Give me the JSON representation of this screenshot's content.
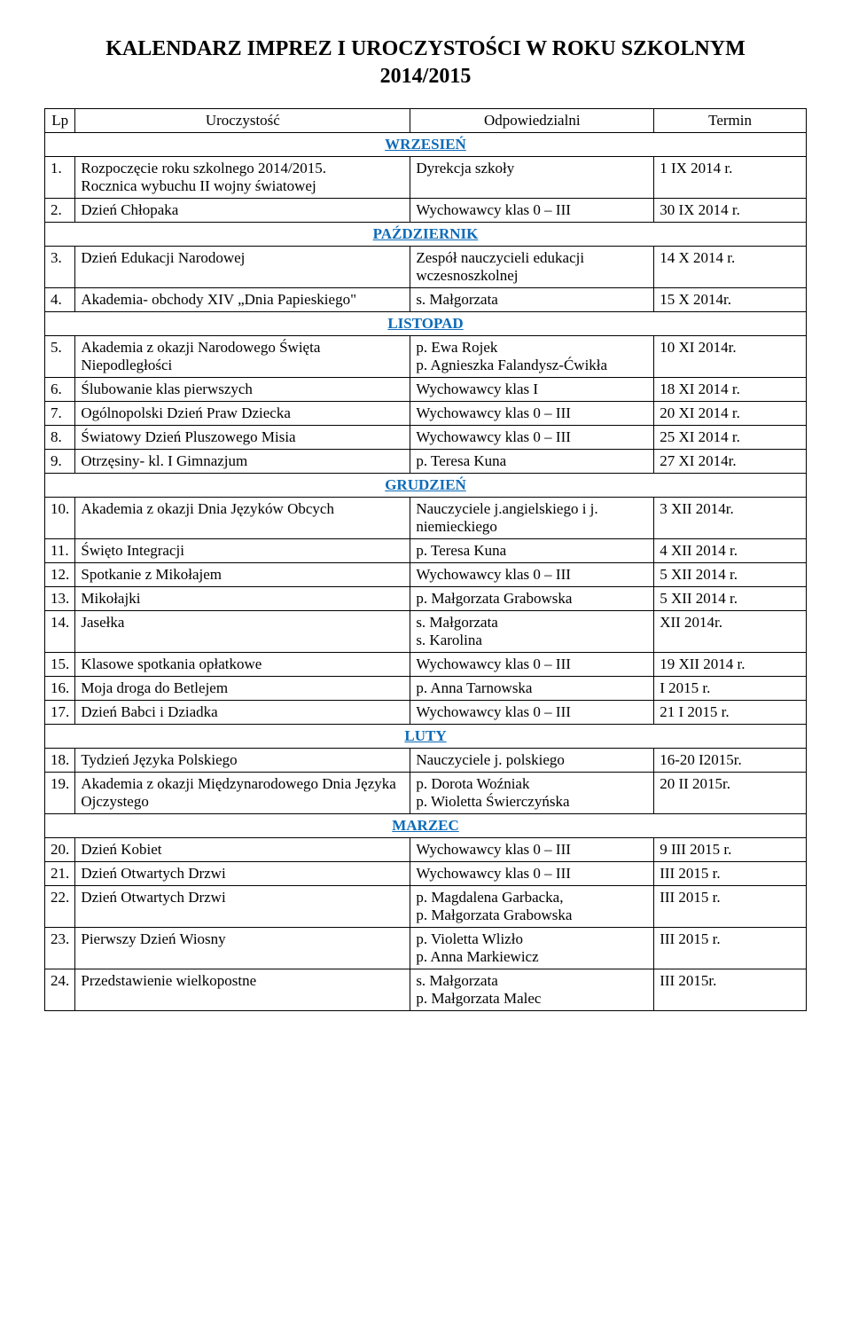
{
  "title_line1": "KALENDARZ IMPREZ I UROCZYSTOŚCI W ROKU SZKOLNYM",
  "title_line2": "2014/2015",
  "headers": {
    "lp": "Lp",
    "event": "Uroczystość",
    "resp": "Odpowiedzialni",
    "term": "Termin"
  },
  "months": {
    "wrzesien": "WRZESIEŃ",
    "pazdziernik": "PAŹDZIERNIK",
    "listopad": "LISTOPAD",
    "grudzien": "GRUDZIEŃ",
    "luty": "LUTY",
    "marzec": "MARZEC"
  },
  "rows": {
    "r1": {
      "lp": "1.",
      "event": "Rozpoczęcie roku szkolnego 2014/2015.\nRocznica wybuchu II wojny światowej",
      "resp": "Dyrekcja szkoły",
      "term": "1 IX 2014 r."
    },
    "r2": {
      "lp": "2.",
      "event": "Dzień Chłopaka",
      "resp": "Wychowawcy klas 0 – III",
      "term": "30 IX 2014 r."
    },
    "r3": {
      "lp": "3.",
      "event": "Dzień Edukacji Narodowej",
      "resp": "Zespół nauczycieli edukacji wczesnoszkolnej",
      "term": "14 X 2014 r."
    },
    "r4": {
      "lp": "4.",
      "event": "Akademia- obchody XIV „Dnia Papieskiego\"",
      "resp": "s. Małgorzata",
      "term": "15 X 2014r."
    },
    "r5": {
      "lp": "5.",
      "event": "Akademia z okazji Narodowego Święta Niepodległości",
      "resp": "p. Ewa Rojek\np. Agnieszka Falandysz-Ćwikła",
      "term": "10 XI 2014r."
    },
    "r6": {
      "lp": "6.",
      "event": "Ślubowanie klas pierwszych",
      "resp": "Wychowawcy klas I",
      "term": "18 XI 2014 r."
    },
    "r7": {
      "lp": "7.",
      "event": "Ogólnopolski Dzień Praw Dziecka",
      "resp": "Wychowawcy klas 0 – III",
      "term": "20 XI 2014 r."
    },
    "r8": {
      "lp": "8.",
      "event": "Światowy Dzień Pluszowego Misia",
      "resp": "Wychowawcy klas 0 – III",
      "term": "25 XI 2014 r."
    },
    "r9": {
      "lp": "9.",
      "event": "Otrzęsiny- kl. I Gimnazjum",
      "resp": "p. Teresa Kuna",
      "term": "27 XI 2014r."
    },
    "r10": {
      "lp": "10.",
      "event": "Akademia z okazji Dnia Języków Obcych",
      "resp": "Nauczyciele   j.angielskiego i j. niemieckiego",
      "term": "3 XII 2014r."
    },
    "r11": {
      "lp": "11.",
      "event": "Święto Integracji",
      "resp": "p. Teresa Kuna",
      "term": "4 XII 2014 r."
    },
    "r12": {
      "lp": "12.",
      "event": "Spotkanie z Mikołajem",
      "resp": "Wychowawcy klas 0 – III",
      "term": "5 XII 2014 r."
    },
    "r13": {
      "lp": "13.",
      "event": "Mikołajki",
      "resp": "p. Małgorzata Grabowska",
      "term": "5 XII 2014 r."
    },
    "r14": {
      "lp": "14.",
      "event": "Jasełka",
      "resp": "s. Małgorzata\ns. Karolina",
      "term": "XII 2014r."
    },
    "r15": {
      "lp": "15.",
      "event": "Klasowe spotkania opłatkowe",
      "resp": "Wychowawcy klas 0 – III",
      "term": "19 XII 2014 r."
    },
    "r16": {
      "lp": "16.",
      "event": "Moja droga do Betlejem",
      "resp": "p. Anna Tarnowska",
      "term": "I 2015 r."
    },
    "r17": {
      "lp": "17.",
      "event": "Dzień Babci i Dziadka",
      "resp": "Wychowawcy klas 0 – III",
      "term": "21 I 2015 r."
    },
    "r18": {
      "lp": "18.",
      "event": "Tydzień Języka Polskiego",
      "resp": "Nauczyciele j. polskiego",
      "term": "16-20 I2015r."
    },
    "r19": {
      "lp": "19.",
      "event": "Akademia z okazji Międzynarodowego Dnia Języka Ojczystego",
      "resp": "p. Dorota Woźniak\np. Wioletta Świerczyńska",
      "term": "20 II 2015r."
    },
    "r20": {
      "lp": "20.",
      "event": "Dzień Kobiet",
      "resp": "Wychowawcy klas 0 – III",
      "term": "9 III 2015 r."
    },
    "r21": {
      "lp": "21.",
      "event": "Dzień Otwartych Drzwi",
      "resp": "Wychowawcy klas 0 – III",
      "term": "III 2015 r."
    },
    "r22": {
      "lp": "22.",
      "event": "Dzień Otwartych Drzwi",
      "resp": "p. Magdalena Garbacka,\np. Małgorzata Grabowska",
      "term": "III 2015 r."
    },
    "r23": {
      "lp": "23.",
      "event": "Pierwszy Dzień Wiosny",
      "resp": "p. Violetta Wlizło\np. Anna Markiewicz",
      "term": "III 2015 r."
    },
    "r24": {
      "lp": "24.",
      "event": "Przedstawienie wielkopostne",
      "resp": "s. Małgorzata\np. Małgorzata Malec",
      "term": "III 2015r."
    }
  }
}
